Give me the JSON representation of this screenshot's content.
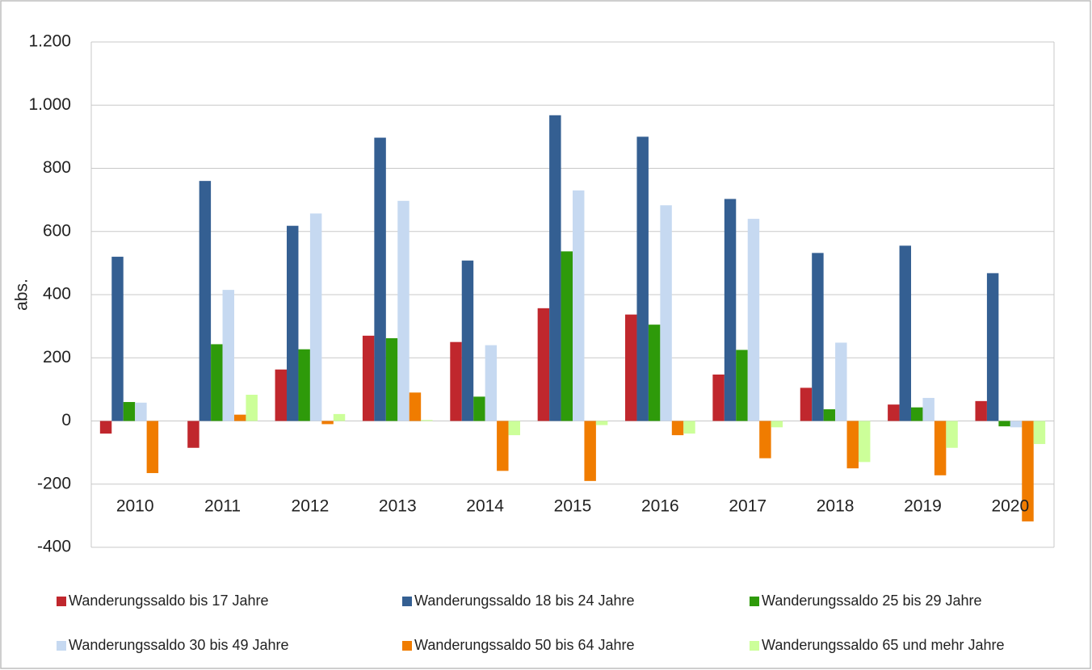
{
  "chart_data": {
    "type": "bar",
    "y_label": "abs.",
    "categories": [
      "2010",
      "2011",
      "2012",
      "2013",
      "2014",
      "2015",
      "2016",
      "2017",
      "2018",
      "2019",
      "2020"
    ],
    "series": [
      {
        "name": "Wanderungssaldo bis 17 Jahre",
        "color": "#c0272d",
        "values": [
          -40,
          -85,
          163,
          270,
          250,
          357,
          337,
          147,
          105,
          52,
          63
        ]
      },
      {
        "name": "Wanderungssaldo 18 bis 24 Jahre",
        "color": "#345f92",
        "values": [
          520,
          760,
          618,
          897,
          508,
          968,
          900,
          703,
          532,
          555,
          468
        ]
      },
      {
        "name": "Wanderungssaldo 25 bis 29 Jahre",
        "color": "#2e9a0a",
        "values": [
          60,
          243,
          227,
          262,
          77,
          537,
          305,
          225,
          37,
          43,
          -17
        ]
      },
      {
        "name": "Wanderungssaldo 30 bis 49 Jahre",
        "color": "#c6d9f1",
        "values": [
          58,
          415,
          657,
          697,
          240,
          730,
          683,
          640,
          248,
          73,
          -20
        ]
      },
      {
        "name": "Wanderungssaldo 50 bis 64 Jahre",
        "color": "#f07c00",
        "values": [
          -165,
          20,
          -10,
          90,
          -158,
          -190,
          -45,
          -118,
          -150,
          -172,
          -318
        ]
      },
      {
        "name": "Wanderungssaldo 65 und mehr Jahre",
        "color": "#ccff99",
        "values": [
          0,
          83,
          22,
          3,
          -45,
          -13,
          -40,
          -20,
          -130,
          -85,
          -73
        ]
      }
    ],
    "ylim": [
      -400,
      1200
    ],
    "yticks": [
      -400,
      -200,
      0,
      200,
      400,
      600,
      800,
      {
        "value": 1000,
        "label": "1.000"
      },
      {
        "value": 1200,
        "label": "1.200"
      }
    ],
    "grid": true
  }
}
